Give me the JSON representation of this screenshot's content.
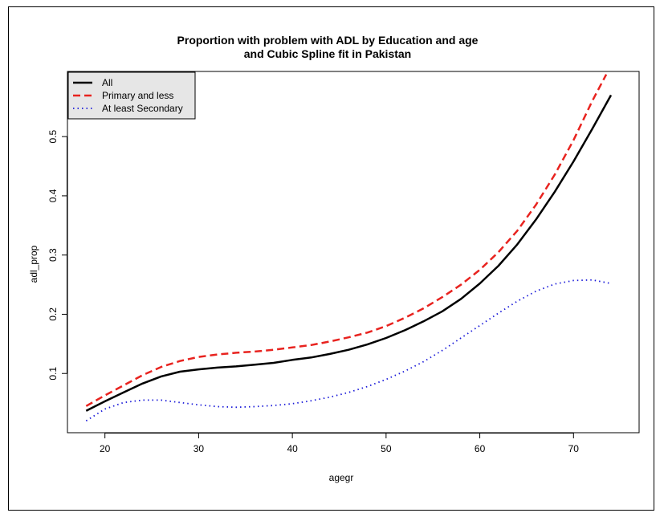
{
  "chart_data": {
    "type": "line",
    "title_lines": [
      "Proportion with problem with ADL by Education and age",
      "and Cubic Spline fit in Pakistan"
    ],
    "xlabel": "agegr",
    "ylabel": "adl_prop",
    "xlim": [
      16,
      77
    ],
    "ylim": [
      0.0,
      0.61
    ],
    "x_ticks": [
      20,
      30,
      40,
      50,
      60,
      70
    ],
    "y_ticks": [
      0.1,
      0.2,
      0.3,
      0.4,
      0.5
    ],
    "y_tick_labels": [
      "0.1",
      "0.2",
      "0.3",
      "0.4",
      "0.5"
    ],
    "legend_position": "top-left",
    "grid": false,
    "series": [
      {
        "name": "All",
        "color": "#000000",
        "style": "solid",
        "x": [
          18,
          20,
          22,
          24,
          26,
          28,
          30,
          32,
          34,
          36,
          38,
          40,
          42,
          44,
          46,
          48,
          50,
          52,
          54,
          56,
          58,
          60,
          62,
          64,
          66,
          68,
          70,
          72,
          74
        ],
        "y": [
          0.037,
          0.053,
          0.068,
          0.083,
          0.095,
          0.103,
          0.107,
          0.11,
          0.112,
          0.115,
          0.118,
          0.123,
          0.127,
          0.133,
          0.14,
          0.149,
          0.16,
          0.173,
          0.188,
          0.205,
          0.226,
          0.252,
          0.282,
          0.318,
          0.36,
          0.407,
          0.458,
          0.513,
          0.57
        ]
      },
      {
        "name": "Primary and less",
        "color": "#e8231f",
        "style": "dashed",
        "x": [
          18,
          20,
          22,
          24,
          26,
          28,
          30,
          32,
          34,
          36,
          38,
          40,
          42,
          44,
          46,
          48,
          50,
          52,
          54,
          56,
          58,
          60,
          62,
          64,
          66,
          68,
          70,
          72,
          73.5
        ],
        "y": [
          0.045,
          0.063,
          0.08,
          0.097,
          0.111,
          0.121,
          0.128,
          0.132,
          0.135,
          0.137,
          0.14,
          0.144,
          0.148,
          0.154,
          0.161,
          0.169,
          0.18,
          0.194,
          0.21,
          0.229,
          0.25,
          0.275,
          0.305,
          0.341,
          0.385,
          0.436,
          0.494,
          0.56,
          0.605
        ]
      },
      {
        "name": "At least Secondary",
        "color": "#1b1bd9",
        "style": "dotted",
        "x": [
          18,
          20,
          22,
          24,
          26,
          28,
          30,
          32,
          34,
          36,
          38,
          40,
          42,
          44,
          46,
          48,
          50,
          52,
          54,
          56,
          58,
          60,
          62,
          64,
          66,
          68,
          70,
          72,
          74
        ],
        "y": [
          0.02,
          0.04,
          0.051,
          0.055,
          0.055,
          0.051,
          0.047,
          0.044,
          0.043,
          0.044,
          0.046,
          0.049,
          0.054,
          0.06,
          0.068,
          0.078,
          0.09,
          0.104,
          0.12,
          0.139,
          0.16,
          0.181,
          0.202,
          0.222,
          0.239,
          0.251,
          0.257,
          0.258,
          0.252
        ]
      }
    ]
  }
}
